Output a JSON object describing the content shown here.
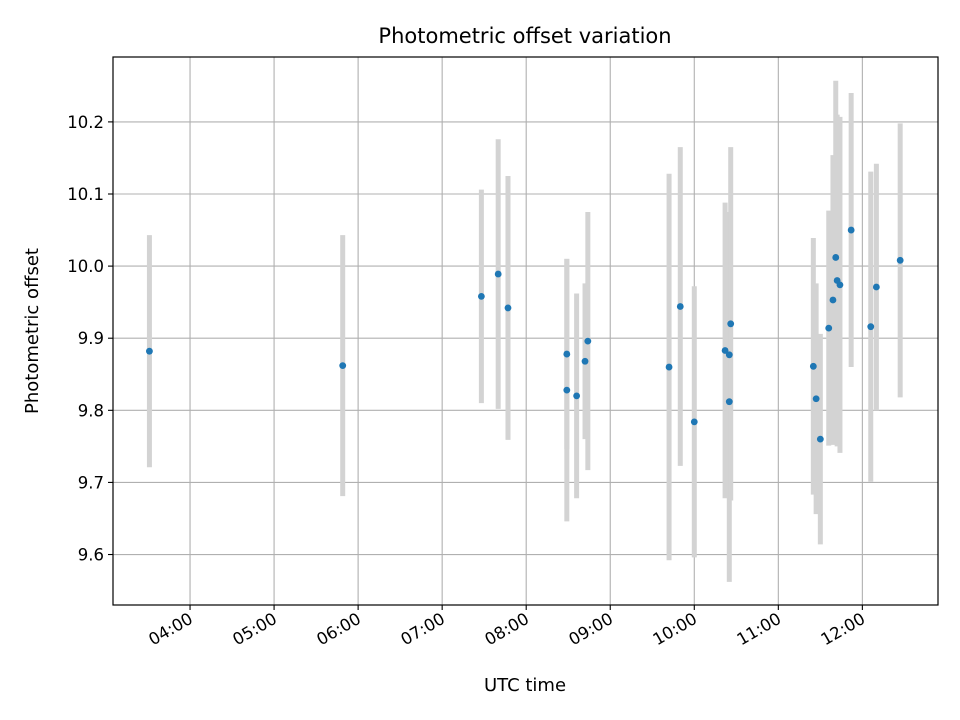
{
  "chart_data": {
    "type": "scatter",
    "title": "Photometric offset variation",
    "xlabel": "UTC time",
    "ylabel": "Photometric offset",
    "xlim": [
      "03:05",
      "12:54"
    ],
    "ylim": [
      9.53,
      10.29
    ],
    "grid": true,
    "x_ticks": [
      "04:00",
      "05:00",
      "06:00",
      "07:00",
      "08:00",
      "09:00",
      "10:00",
      "11:00",
      "12:00"
    ],
    "y_ticks": [
      9.6,
      9.7,
      9.8,
      9.9,
      10.0,
      10.1,
      10.2
    ],
    "y_tick_labels": [
      "9.6",
      "9.7",
      "9.8",
      "9.9",
      "10.0",
      "10.1",
      "10.2"
    ],
    "colors": {
      "point": "#1f77b4",
      "errorbar": "#d3d3d3",
      "grid": "#b0b0b0"
    },
    "series": [
      {
        "points": [
          {
            "x": "03:31",
            "y": 9.882,
            "err": 0.161
          },
          {
            "x": "05:49",
            "y": 9.862,
            "err": 0.181
          },
          {
            "x": "07:28",
            "y": 9.958,
            "err": 0.148
          },
          {
            "x": "07:40",
            "y": 9.989,
            "err": 0.187
          },
          {
            "x": "07:47",
            "y": 9.942,
            "err": 0.183
          },
          {
            "x": "08:29",
            "y": 9.878,
            "err": 0.132
          },
          {
            "x": "08:29",
            "y": 9.828,
            "err": 0.182
          },
          {
            "x": "08:36",
            "y": 9.82,
            "err": 0.142
          },
          {
            "x": "08:42",
            "y": 9.868,
            "err": 0.108
          },
          {
            "x": "08:44",
            "y": 9.896,
            "err": 0.179
          },
          {
            "x": "09:42",
            "y": 9.86,
            "err": 0.268
          },
          {
            "x": "09:50",
            "y": 9.944,
            "err": 0.221
          },
          {
            "x": "10:00",
            "y": 9.784,
            "err": 0.188
          },
          {
            "x": "10:22",
            "y": 9.883,
            "err": 0.205
          },
          {
            "x": "10:25",
            "y": 9.877,
            "err": 0.198
          },
          {
            "x": "10:25",
            "y": 9.812,
            "err": 0.25
          },
          {
            "x": "10:26",
            "y": 9.92,
            "err": 0.245
          },
          {
            "x": "11:25",
            "y": 9.861,
            "err": 0.178
          },
          {
            "x": "11:27",
            "y": 9.816,
            "err": 0.16
          },
          {
            "x": "11:30",
            "y": 9.76,
            "err": 0.146
          },
          {
            "x": "11:36",
            "y": 9.914,
            "err": 0.163
          },
          {
            "x": "11:39",
            "y": 9.953,
            "err": 0.201
          },
          {
            "x": "11:41",
            "y": 10.012,
            "err": 0.245
          },
          {
            "x": "11:42",
            "y": 9.98,
            "err": 0.23
          },
          {
            "x": "11:44",
            "y": 9.974,
            "err": 0.233
          },
          {
            "x": "11:52",
            "y": 10.05,
            "err": 0.19
          },
          {
            "x": "12:06",
            "y": 9.916,
            "err": 0.215
          },
          {
            "x": "12:10",
            "y": 9.971,
            "err": 0.171
          },
          {
            "x": "12:27",
            "y": 10.008,
            "err": 0.19
          }
        ]
      }
    ]
  }
}
